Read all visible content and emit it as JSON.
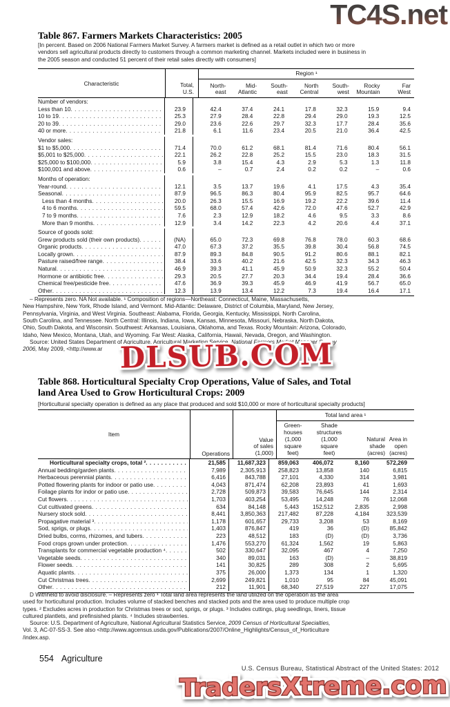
{
  "watermarks": {
    "top": "TC4S.net",
    "middle": "DLSUB.COM",
    "bottom": "TradersXtreme.com"
  },
  "table867": {
    "title": "Table 867. Farmers Markets Characteristics: 2005",
    "note": "[In percent. Based on 2006 National Farmers Market Survey. A farmers market is defined as a retail outlet in which two or more\nvendors sell agricultural products directly to customers through a common marketing channel. Markets included were in business in\nthe 2005 season and conducted 51 percent of their retail sales directly with consumers]",
    "stub_header": "Characteristic",
    "total_header": "Total,\nU.S.",
    "region_group_header": "Region ¹",
    "region_columns": [
      "North-\neast",
      "Mid-\nAtlantic",
      "South-\neast",
      "North\nCentral",
      "South-\nwest",
      "Rocky\nMountain",
      "Far\nWest"
    ],
    "rows": [
      {
        "label": "Number of vendors:",
        "group": true
      },
      {
        "label": "Less than 10",
        "values": [
          "23.9",
          "42.4",
          "37.4",
          "24.1",
          "17.8",
          "32.3",
          "15.9",
          "9.4"
        ]
      },
      {
        "label": "10 to 19",
        "values": [
          "25.3",
          "27.9",
          "28.4",
          "22.8",
          "29.4",
          "29.0",
          "19.3",
          "12.5"
        ]
      },
      {
        "label": "20 to 39",
        "values": [
          "29.0",
          "23.6",
          "22.6",
          "29.7",
          "32.3",
          "17.7",
          "28.4",
          "35.6"
        ]
      },
      {
        "label": "40 or more",
        "values": [
          "21.8",
          "6.1",
          "11.6",
          "23.4",
          "20.5",
          "21.0",
          "36.4",
          "42.5"
        ]
      },
      {
        "label": "Vendor sales:",
        "group": true,
        "gap": true
      },
      {
        "label": "$1 to $5,000",
        "values": [
          "71.4",
          "70.0",
          "61.2",
          "68.1",
          "81.4",
          "71.6",
          "80.4",
          "56.1"
        ]
      },
      {
        "label": "$5,001 to $25,000",
        "values": [
          "22.1",
          "26.2",
          "22.8",
          "25.2",
          "15.5",
          "23.0",
          "18.3",
          "31.5"
        ]
      },
      {
        "label": "$25,000 to $100,000",
        "values": [
          "5.9",
          "3.8",
          "15.4",
          "4.3",
          "2.9",
          "5.3",
          "1.3",
          "11.8"
        ]
      },
      {
        "label": "$100,001 and above",
        "values": [
          "0.6",
          "–",
          "0.7",
          "2.4",
          "0.2",
          "0.2",
          "–",
          "0.6"
        ]
      },
      {
        "label": "Months of operation:",
        "group": true,
        "gap": true
      },
      {
        "label": "Year-round",
        "values": [
          "12.1",
          "3.5",
          "13.7",
          "19.6",
          "4.1",
          "17.5",
          "4.3",
          "35.4"
        ]
      },
      {
        "label": "Seasonal",
        "values": [
          "87.9",
          "96.5",
          "86.3",
          "80.4",
          "95.9",
          "82.5",
          "95.7",
          "64.6"
        ]
      },
      {
        "label": "Less than 4 months",
        "indent": 1,
        "values": [
          "20.0",
          "26.3",
          "15.5",
          "16.9",
          "19.2",
          "22.2",
          "39.6",
          "11.4"
        ]
      },
      {
        "label": "4 to 6 months",
        "indent": 1,
        "values": [
          "59.5",
          "68.0",
          "57.4",
          "42.6",
          "72.0",
          "47.6",
          "52.7",
          "42.9"
        ]
      },
      {
        "label": "7 to 9 months",
        "indent": 1,
        "values": [
          "7.6",
          "2.3",
          "12.9",
          "18.2",
          "4.6",
          "9.5",
          "3.3",
          "8.6"
        ]
      },
      {
        "label": "More than 9 months",
        "indent": 1,
        "values": [
          "12.9",
          "3.4",
          "14.2",
          "22.3",
          "4.2",
          "20.6",
          "4.4",
          "37.1"
        ]
      },
      {
        "label": "Source of goods sold:",
        "group": true,
        "gap": true
      },
      {
        "label": "Grew products sold (their own products)",
        "values": [
          "(NA)",
          "65.0",
          "72.3",
          "69.8",
          "76.8",
          "78.0",
          "60.3",
          "68.6"
        ]
      },
      {
        "label": "Organic products",
        "values": [
          "47.0",
          "67.3",
          "37.2",
          "35.5",
          "39.8",
          "30.4",
          "56.8",
          "74.5"
        ]
      },
      {
        "label": "Locally grown",
        "values": [
          "87.9",
          "89.3",
          "84.8",
          "90.5",
          "91.2",
          "80.6",
          "88.1",
          "82.1"
        ]
      },
      {
        "label": "Pasture raised/free range",
        "values": [
          "38.4",
          "33.6",
          "40.2",
          "21.6",
          "42.5",
          "32.3",
          "34.3",
          "46.3"
        ]
      },
      {
        "label": "Natural",
        "values": [
          "46.9",
          "39.3",
          "41.1",
          "45.9",
          "50.9",
          "32.3",
          "55.2",
          "50.4"
        ]
      },
      {
        "label": "Hormone or antibiotic free",
        "values": [
          "29.3",
          "20.5",
          "27.7",
          "20.3",
          "34.4",
          "19.4",
          "28.4",
          "36.6"
        ]
      },
      {
        "label": "Chemical free/pesticide free",
        "values": [
          "47.6",
          "36.9",
          "39.3",
          "45.9",
          "46.9",
          "41.9",
          "56.7",
          "65.0"
        ]
      },
      {
        "label": "Other",
        "values": [
          "12.3",
          "13.9",
          "13.4",
          "12.2",
          "7.3",
          "19.4",
          "16.4",
          "17.1"
        ]
      }
    ],
    "footnote": "– Represents zero. NA Not available. ¹ Composition of regions—Northeast: Connecticut, Maine, Massachusetts,\nNew Hampshire, New York, Rhode Island, and Vermont. Mid-Atlantic: Delaware, District of Columbia, Maryland, New Jersey,\nPennsylvania, Virginia, and West Virginia. Southeast: Alabama, Florida, Georgia, Kentucky, Mississippi, North Carolina,\nSouth Carolina, and Tennessee. North Central: Illinois, Indiana, Iowa, Kansas, Minnesota, Missouri, Nebraska, North Dakota,\nOhio, South Dakota, and Wisconsin. Southwest: Arkansas, Louisiana, Oklahoma, and Texas. Rocky Mountain: Arizona, Colorado,\nIdaho, New Mexico, Montana, Utah, and Wyoming. Far West: Alaska, California, Hawaii, Nevada, Oregon, and Washington.",
    "source_prefix": "Source: United States Department of Agriculture, Agricultural Marketing Service, ",
    "source_italic": "National Farmers Market Manager Survey\n2006,",
    "source_suffix": " May 2009, <http://www.ar"
  },
  "table868": {
    "title": "Table 868. Horticultural Specialty Crop Operations, Value of Sales, and Total\nland Area Used to Grow Horticultural Crops: 2009",
    "note": "[Horticultural specialty operation is defined as any place that produced and sold $10,000 or more of horticultural specialty products]",
    "stub_header": "Item",
    "operations_header": "Operations",
    "value_header": "Value\nof sales\n(1,000)",
    "land_group_header": "Total land area ¹",
    "land_columns": [
      "Green-\nhouses\n(1,000\nsquare\nfeet)",
      "Shade\nstructures\n(1,000\nsquare\nfeet)",
      "Natural\nshade\n(acres)",
      "Area in\nopen\n(acres)"
    ],
    "rows": [
      {
        "label": "Horticultural specialty crops, total ²",
        "bold": true,
        "indent": 2,
        "values": [
          "21,585",
          "11,687,323",
          "859,063",
          "406,072",
          "8,160",
          "572,269"
        ]
      },
      {
        "label": "Annual bedding/garden plants",
        "values": [
          "7,989",
          "2,305,913",
          "258,823",
          "13,858",
          "140",
          "6,815"
        ]
      },
      {
        "label": "Herbaceous perennial plants",
        "values": [
          "6,416",
          "843,788",
          "27,101",
          "4,330",
          "314",
          "3,981"
        ]
      },
      {
        "label": "Potted flowering plants for indoor or patio use",
        "values": [
          "4,043",
          "871,474",
          "62,208",
          "23,893",
          "41",
          "1,693"
        ]
      },
      {
        "label": "Foilage plants for indor or patio use",
        "values": [
          "2,728",
          "509,873",
          "39,583",
          "76,645",
          "144",
          "2,314"
        ]
      },
      {
        "label": "Cut flowers",
        "values": [
          "1,703",
          "403,254",
          "53,495",
          "14,248",
          "76",
          "12,068"
        ]
      },
      {
        "label": "Cut cultivated greens",
        "values": [
          "634",
          "84,148",
          "5,443",
          "152,512",
          "2,835",
          "2,998"
        ]
      },
      {
        "label": "Nursery stock sold",
        "values": [
          "8,441",
          "3,850,363",
          "217,482",
          "87,228",
          "4,184",
          "323,539"
        ]
      },
      {
        "label": "Propagative material ³",
        "values": [
          "1,178",
          "601,657",
          "29,733",
          "3,208",
          "53",
          "8,169"
        ]
      },
      {
        "label": "Sod, sprigs, or plugs",
        "values": [
          "1,403",
          "876,847",
          "419",
          "36",
          "(D)",
          "85,842"
        ]
      },
      {
        "label": "Dried bulbs, corms, rhizomes, and tubers",
        "values": [
          "223",
          "48,512",
          "183",
          "(D)",
          "(D)",
          "3,736"
        ]
      },
      {
        "label": "Food crops grown under protection",
        "values": [
          "1,476",
          "553,270",
          "61,324",
          "1,562",
          "19",
          "5,863"
        ]
      },
      {
        "label": "Transplants for commercial vegetable production ⁴",
        "values": [
          "502",
          "330,647",
          "32,095",
          "467",
          "4",
          "7,250"
        ]
      },
      {
        "label": "Vegetable seeds",
        "values": [
          "340",
          "89,031",
          "163",
          "(D)",
          "–",
          "38,819"
        ]
      },
      {
        "label": "Flower seeds",
        "values": [
          "141",
          "30,825",
          "289",
          "308",
          "2",
          "5,695"
        ]
      },
      {
        "label": "Aquatic plants",
        "values": [
          "375",
          "26,000",
          "1,373",
          "134",
          "1",
          "1,320"
        ]
      },
      {
        "label": "Cut Christmas trees",
        "values": [
          "2,699",
          "249,821",
          "1,010",
          "95",
          "84",
          "45,091"
        ]
      },
      {
        "label": "Other",
        "values": [
          "212",
          "11,901",
          "68,340",
          "27,519",
          "227",
          "17,075"
        ]
      }
    ],
    "footnote": "D Withheld to avoid disclosure. – Represents zero ¹ Total land area represents the land utilized on the operation as the area\nused for horticultural production. Includes volume of stacked benches and stacked pots and the area used to produce multiple crop\ntypes. ² Excludes acres in production for Christmas trees or sod, sprigs, or plugs. ³ Includes cuttings, plug seedlings, liners, tissue\ncultured plantlets, and prefinsished plants. ⁴ Includes strawberries.",
    "source_prefix": "Source: U.S. Department of Agriculture, National Agricultural Statistics Service, ",
    "source_italic": "2009 Census of Horticultural Specialties,",
    "source_suffix": "\nVol. 3, AC-07-SS-3. See also <http://www.agcensus.usda.gov/Publications/2007/Online_Highlights/Census_of_Horticulture\n/index.asp."
  },
  "footer": {
    "page_number": "554",
    "section": "Agriculture",
    "right": "U.S. Census Bureau, Statistical Abstract of the United States: 2012"
  }
}
